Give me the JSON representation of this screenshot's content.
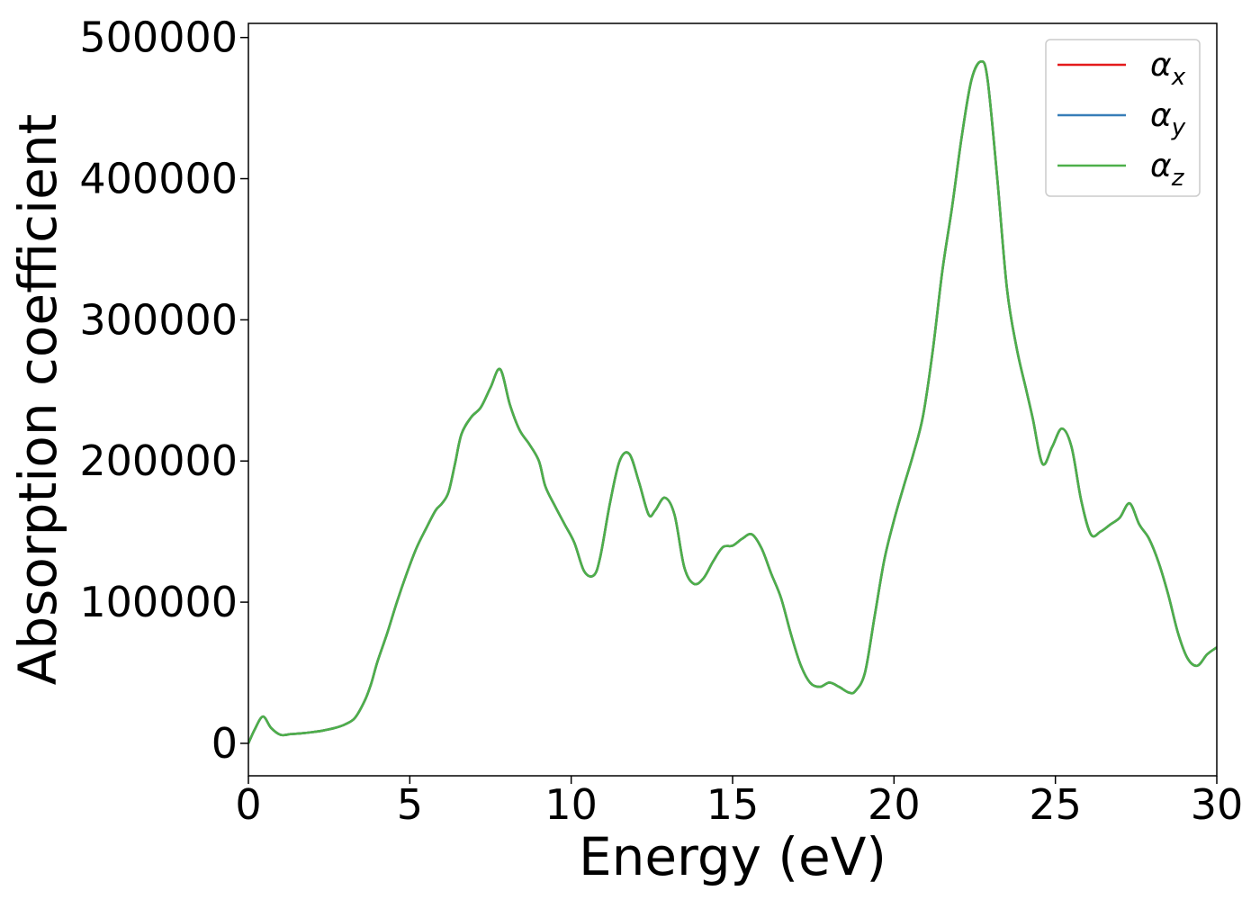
{
  "chart_data": {
    "type": "line",
    "title": "",
    "xlabel": "Energy (eV)",
    "ylabel": "Absorption coefficient",
    "xlim": [
      0,
      30
    ],
    "ylim": [
      -23000,
      510000
    ],
    "grid": false,
    "legend_position": "top-right",
    "x_ticks": [
      0,
      5,
      10,
      15,
      20,
      25,
      30
    ],
    "x_tick_labels": [
      "0",
      "5",
      "10",
      "15",
      "20",
      "25",
      "30"
    ],
    "y_ticks": [
      0,
      100000,
      200000,
      300000,
      400000,
      500000
    ],
    "y_tick_labels": [
      "0",
      "100000",
      "200000",
      "300000",
      "400000",
      "500000"
    ],
    "x": [
      0,
      0.2,
      0.45,
      0.7,
      1.0,
      1.3,
      1.6,
      2.0,
      2.3,
      2.7,
      3.0,
      3.3,
      3.6,
      3.8,
      4.0,
      4.3,
      4.6,
      4.9,
      5.2,
      5.5,
      5.8,
      6.0,
      6.2,
      6.4,
      6.6,
      6.9,
      7.2,
      7.5,
      7.8,
      8.1,
      8.4,
      8.7,
      9.0,
      9.2,
      9.5,
      9.8,
      10.1,
      10.4,
      10.7,
      10.9,
      11.2,
      11.5,
      11.8,
      12.1,
      12.4,
      12.6,
      12.9,
      13.2,
      13.5,
      13.8,
      14.1,
      14.4,
      14.7,
      15.0,
      15.3,
      15.6,
      15.9,
      16.2,
      16.5,
      16.8,
      17.1,
      17.4,
      17.7,
      18.0,
      18.3,
      18.6,
      18.8,
      19.1,
      19.4,
      19.7,
      20.0,
      20.3,
      20.6,
      20.9,
      21.2,
      21.5,
      21.8,
      22.1,
      22.4,
      22.7,
      22.9,
      23.2,
      23.5,
      23.8,
      24.1,
      24.3,
      24.6,
      24.9,
      25.2,
      25.5,
      25.8,
      26.1,
      26.4,
      26.7,
      27.0,
      27.3,
      27.6,
      27.9,
      28.2,
      28.5,
      28.8,
      29.1,
      29.4,
      29.7,
      30.0
    ],
    "series": [
      {
        "name": "α_x",
        "color": "#e41a1c",
        "y": [
          0,
          10000,
          19000,
          11000,
          6000,
          6500,
          7000,
          8000,
          9000,
          11000,
          13500,
          18000,
          30000,
          42000,
          58000,
          78000,
          100000,
          120000,
          138000,
          152000,
          165000,
          170000,
          178000,
          198000,
          219000,
          231000,
          238000,
          252000,
          265000,
          240000,
          222000,
          212000,
          200000,
          182000,
          168000,
          155000,
          142000,
          122000,
          119000,
          132000,
          170000,
          200000,
          205000,
          185000,
          162000,
          165000,
          174000,
          162000,
          125000,
          113000,
          117000,
          129000,
          139000,
          140000,
          145000,
          148000,
          138000,
          120000,
          103000,
          78000,
          56000,
          43000,
          40000,
          43000,
          40000,
          36000,
          37000,
          50000,
          90000,
          130000,
          158000,
          182000,
          205000,
          232000,
          278000,
          335000,
          380000,
          430000,
          470000,
          483000,
          470000,
          400000,
          322000,
          280000,
          250000,
          230000,
          198000,
          210000,
          223000,
          210000,
          172000,
          148000,
          150000,
          155000,
          160000,
          170000,
          155000,
          145000,
          128000,
          105000,
          78000,
          60000,
          55000,
          63000,
          68000
        ]
      },
      {
        "name": "α_y",
        "color": "#377eb8",
        "y": [
          0,
          10000,
          19000,
          11000,
          6000,
          6500,
          7000,
          8000,
          9000,
          11000,
          13500,
          18000,
          30000,
          42000,
          58000,
          78000,
          100000,
          120000,
          138000,
          152000,
          165000,
          170000,
          178000,
          198000,
          219000,
          231000,
          238000,
          252000,
          265000,
          240000,
          222000,
          212000,
          200000,
          182000,
          168000,
          155000,
          142000,
          122000,
          119000,
          132000,
          170000,
          200000,
          205000,
          185000,
          162000,
          165000,
          174000,
          162000,
          125000,
          113000,
          117000,
          129000,
          139000,
          140000,
          145000,
          148000,
          138000,
          120000,
          103000,
          78000,
          56000,
          43000,
          40000,
          43000,
          40000,
          36000,
          37000,
          50000,
          90000,
          130000,
          158000,
          182000,
          205000,
          232000,
          278000,
          335000,
          380000,
          430000,
          470000,
          483000,
          470000,
          400000,
          322000,
          280000,
          250000,
          230000,
          198000,
          210000,
          223000,
          210000,
          172000,
          148000,
          150000,
          155000,
          160000,
          170000,
          155000,
          145000,
          128000,
          105000,
          78000,
          60000,
          55000,
          63000,
          68000
        ]
      },
      {
        "name": "α_z",
        "color": "#4daf4a",
        "y": [
          0,
          10000,
          19000,
          11000,
          6000,
          6500,
          7000,
          8000,
          9000,
          11000,
          13500,
          18000,
          30000,
          42000,
          58000,
          78000,
          100000,
          120000,
          138000,
          152000,
          165000,
          170000,
          178000,
          198000,
          219000,
          231000,
          238000,
          252000,
          265000,
          240000,
          222000,
          212000,
          200000,
          182000,
          168000,
          155000,
          142000,
          122000,
          119000,
          132000,
          170000,
          200000,
          205000,
          185000,
          162000,
          165000,
          174000,
          162000,
          125000,
          113000,
          117000,
          129000,
          139000,
          140000,
          145000,
          148000,
          138000,
          120000,
          103000,
          78000,
          56000,
          43000,
          40000,
          43000,
          40000,
          36000,
          37000,
          50000,
          90000,
          130000,
          158000,
          182000,
          205000,
          232000,
          278000,
          335000,
          380000,
          430000,
          470000,
          483000,
          470000,
          400000,
          322000,
          280000,
          250000,
          230000,
          198000,
          210000,
          223000,
          210000,
          172000,
          148000,
          150000,
          155000,
          160000,
          170000,
          155000,
          145000,
          128000,
          105000,
          78000,
          60000,
          55000,
          63000,
          68000
        ]
      }
    ],
    "legend": [
      {
        "base": "α",
        "sub": "x",
        "color": "#e41a1c"
      },
      {
        "base": "α",
        "sub": "y",
        "color": "#377eb8"
      },
      {
        "base": "α",
        "sub": "z",
        "color": "#4daf4a"
      }
    ]
  }
}
